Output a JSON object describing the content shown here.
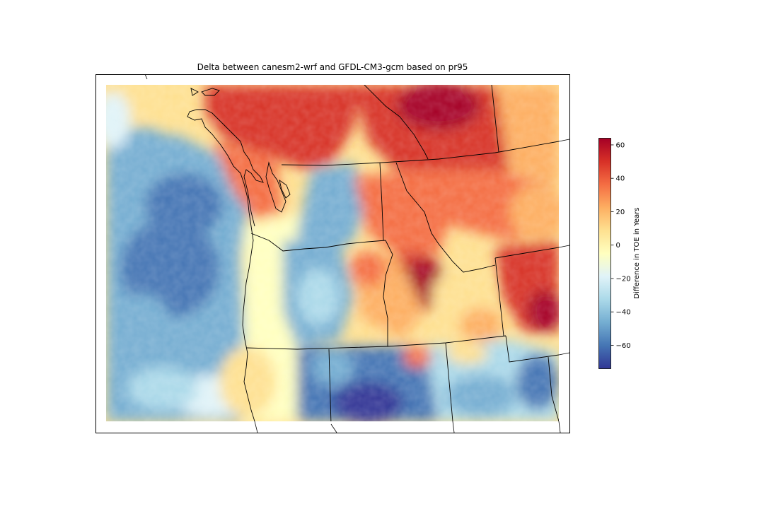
{
  "title": "Delta between canesm2-wrf and GFDL-CM3-gcm based on pr95",
  "colorbar": {
    "label": "Difference in TOE in Years",
    "ticks": [
      60,
      40,
      20,
      0,
      -20,
      -40,
      -60
    ],
    "range": [
      -74,
      64
    ],
    "colormap": "RdYlBu_r",
    "colors": [
      "#313695",
      "#4575b4",
      "#74add1",
      "#abd9e9",
      "#e0f3f8",
      "#ffffbf",
      "#fee090",
      "#fdae61",
      "#f46d43",
      "#d73027",
      "#a50026"
    ]
  },
  "chart_data": {
    "type": "heatmap",
    "title": "Delta between canesm2-wrf and GFDL-CM3-gcm based on pr95",
    "colorbar_label": "Difference in TOE in Years",
    "value_range": [
      -74,
      64
    ],
    "colorbar_ticks": [
      -60,
      -40,
      -20,
      0,
      20,
      40,
      60
    ],
    "grid": false
  }
}
